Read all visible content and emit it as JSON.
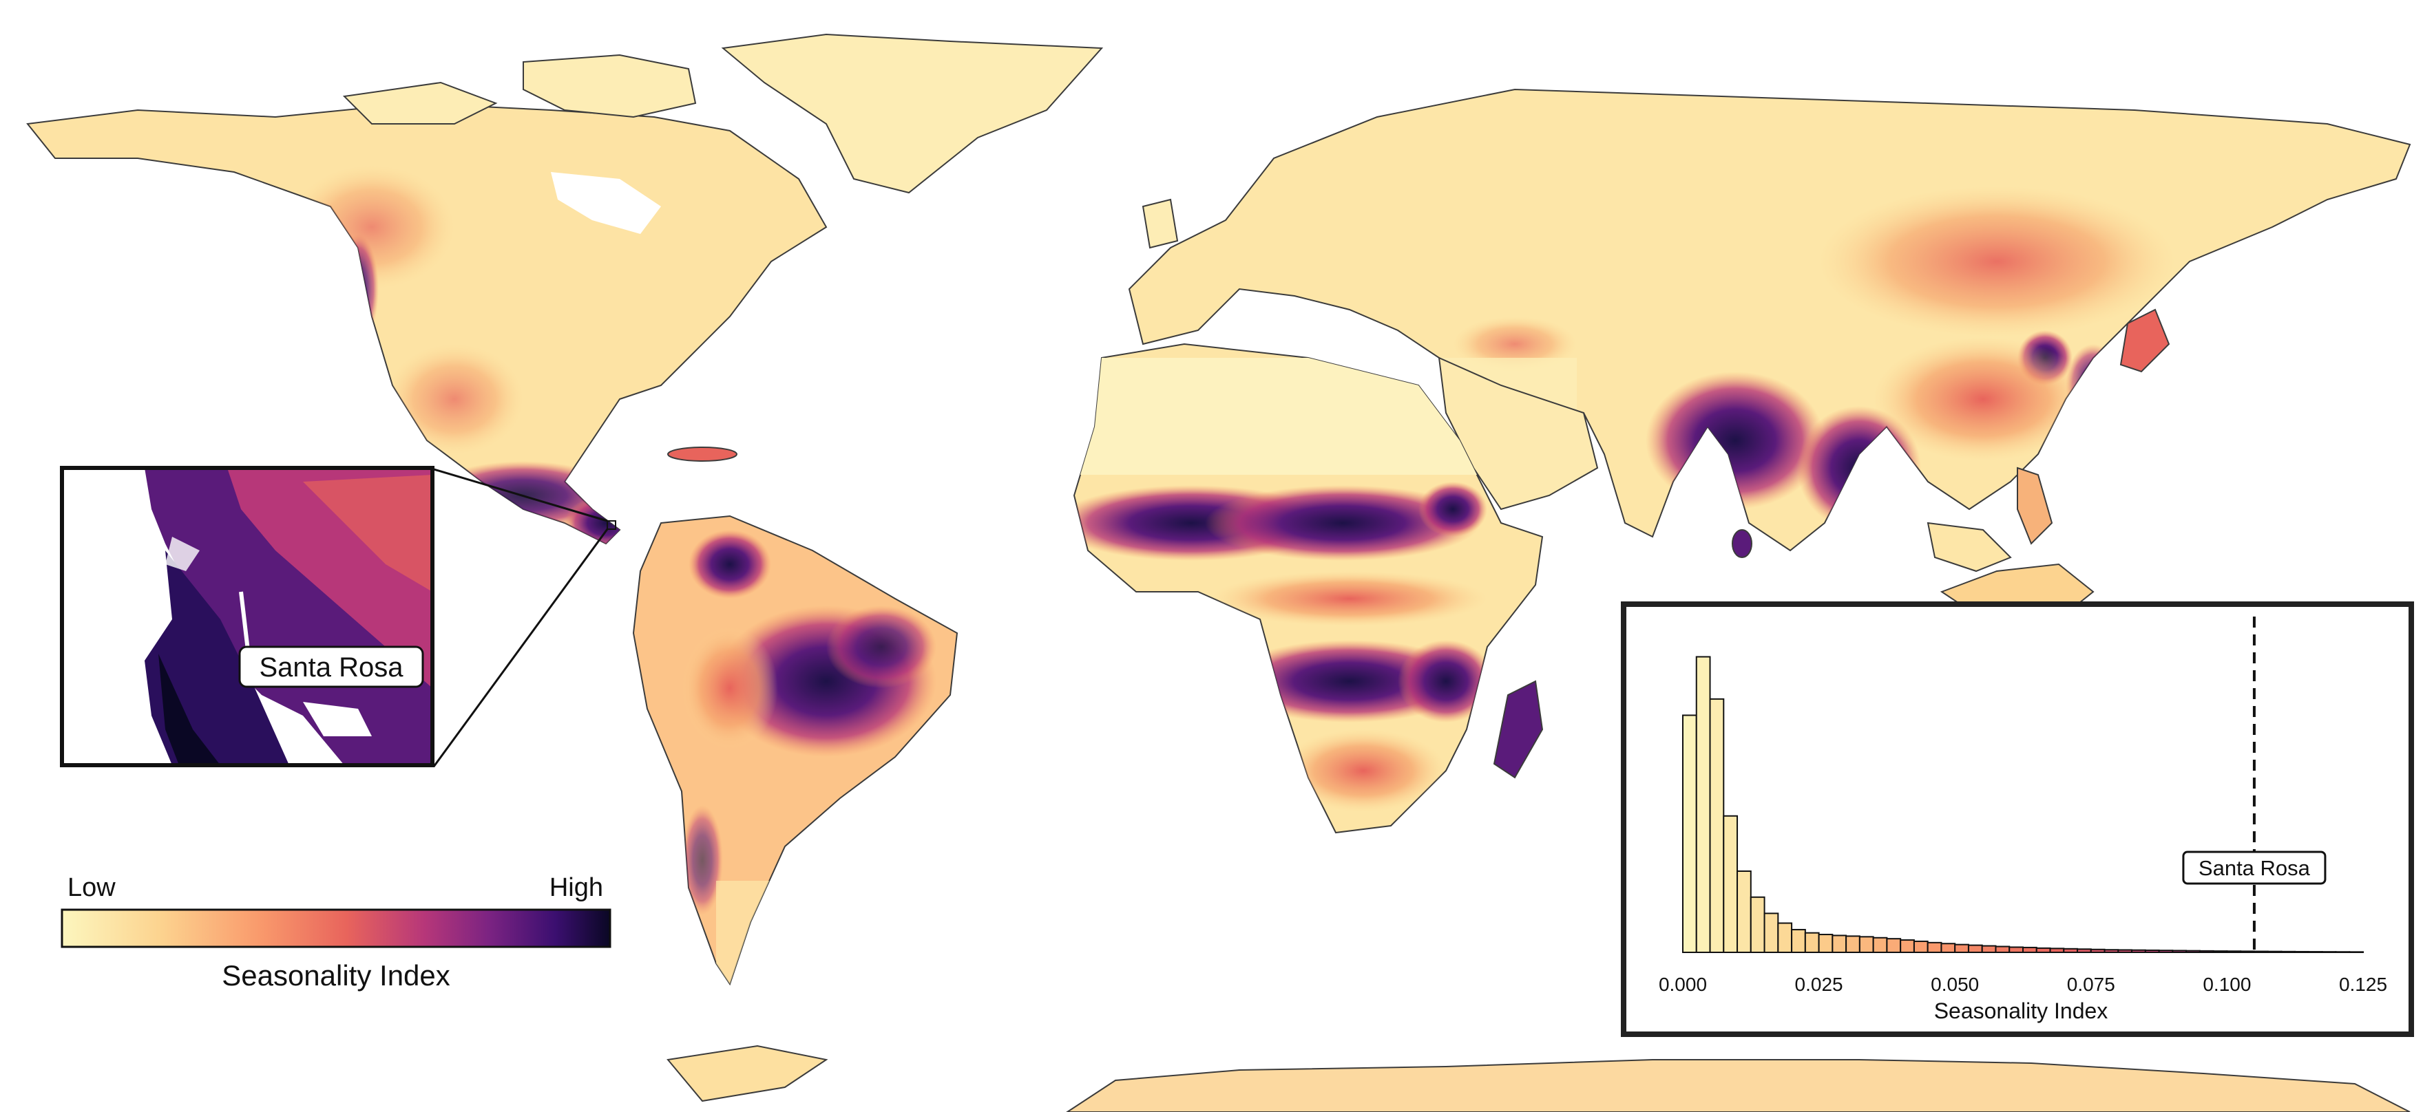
{
  "map": {
    "inset_label": "Santa Rosa",
    "colors": {
      "ramp": [
        "#fcf6be",
        "#fcd38f",
        "#f99a6c",
        "#e8645c",
        "#b73779",
        "#7b2382",
        "#3b0f70",
        "#0a0724"
      ],
      "low": "#fdf3bd",
      "mid": "#fbcf8a",
      "warm": "#f38a5f",
      "hot": "#cf4468",
      "purple": "#6b1f80",
      "dark": "#1d1147",
      "land_edge": "#3b3b3b"
    }
  },
  "legend": {
    "low_label": "Low",
    "high_label": "High",
    "title": "Seasonality Index"
  },
  "chart_data": {
    "type": "bar",
    "xlabel": "Seasonality Index",
    "ylabel": "",
    "xlim": [
      0.0,
      0.125
    ],
    "ylim": [
      0,
      1.0
    ],
    "x_ticks": [
      "0.000",
      "0.025",
      "0.050",
      "0.075",
      "0.100",
      "0.125"
    ],
    "bin_width": 0.0025,
    "bins_start": 0.0,
    "values": [
      0.73,
      0.91,
      0.78,
      0.42,
      0.25,
      0.17,
      0.12,
      0.09,
      0.07,
      0.06,
      0.055,
      0.052,
      0.05,
      0.048,
      0.045,
      0.042,
      0.038,
      0.034,
      0.03,
      0.027,
      0.024,
      0.022,
      0.02,
      0.018,
      0.016,
      0.015,
      0.013,
      0.012,
      0.011,
      0.01,
      0.009,
      0.008,
      0.0075,
      0.007,
      0.0065,
      0.006,
      0.0055,
      0.005,
      0.0045,
      0.004,
      0.0037,
      0.0034,
      0.0031,
      0.0028,
      0.0025,
      0.0022,
      0.002,
      0.0018,
      0.0016,
      0.0014
    ],
    "reference_line": {
      "x": 0.105,
      "label": "Santa Rosa",
      "style": "dashed"
    }
  }
}
